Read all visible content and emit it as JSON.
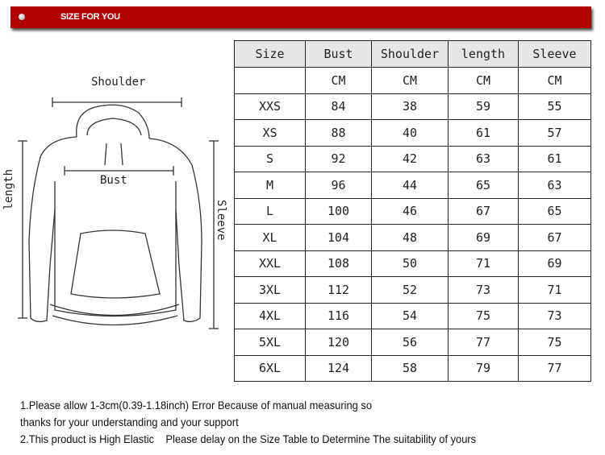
{
  "banner": {
    "title": "SIZE FOR YOU",
    "color": "#b00000"
  },
  "diagram": {
    "shoulder": "Shoulder",
    "bust": "Bust",
    "length": "length",
    "sleeve": "Sleeve"
  },
  "table": {
    "headers": [
      "Size",
      "Bust",
      "Shoulder",
      "length",
      "Sleeve"
    ],
    "units": [
      "",
      "CM",
      "CM",
      "CM",
      "CM"
    ],
    "rows": [
      [
        "XXS",
        "84",
        "38",
        "59",
        "55"
      ],
      [
        "XS",
        "88",
        "40",
        "61",
        "57"
      ],
      [
        "S",
        "92",
        "42",
        "63",
        "61"
      ],
      [
        "M",
        "96",
        "44",
        "65",
        "63"
      ],
      [
        "L",
        "100",
        "46",
        "67",
        "65"
      ],
      [
        "XL",
        "104",
        "48",
        "69",
        "67"
      ],
      [
        "XXL",
        "108",
        "50",
        "71",
        "69"
      ],
      [
        "3XL",
        "112",
        "52",
        "73",
        "71"
      ],
      [
        "4XL",
        "116",
        "54",
        "75",
        "73"
      ],
      [
        "5XL",
        "120",
        "56",
        "77",
        "75"
      ],
      [
        "6XL",
        "124",
        "58",
        "79",
        "77"
      ]
    ]
  },
  "notes": [
    "1.Please allow 1-3cm(0.39-1.18inch) Error Because of manual measuring so",
    "thanks for your understanding and your support",
    "2.This product is High Elastic    Please delay on the Size Table to Determine The suitability of yours"
  ]
}
